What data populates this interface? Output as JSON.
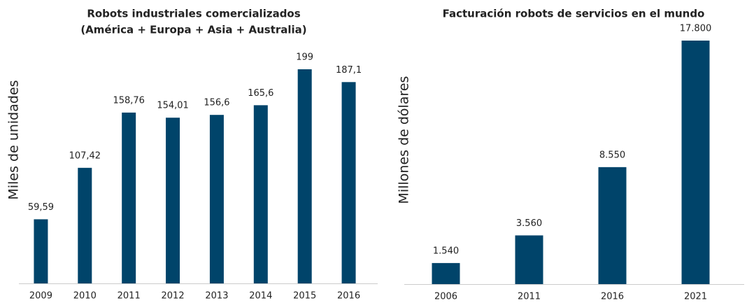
{
  "chart_data": [
    {
      "type": "bar",
      "title": [
        "Robots industriales comercializados",
        "(América + Europa + Asia + Australia)"
      ],
      "y_label": "Miles de unidades",
      "categories": [
        "2009",
        "2010",
        "2011",
        "2012",
        "2013",
        "2014",
        "2015",
        "2016"
      ],
      "values": [
        59.59,
        107.42,
        158.76,
        154.01,
        156.6,
        165.6,
        199,
        187.1
      ],
      "value_labels": [
        "59,59",
        "107,42",
        "158,76",
        "154,01",
        "156,6",
        "165,6",
        "199",
        "187,1"
      ],
      "color": "#00446a"
    },
    {
      "type": "bar",
      "title": [
        "Facturación robots de servicios en el mundo"
      ],
      "y_label": "Millones de dólares",
      "categories": [
        "2006",
        "2011",
        "2016",
        "2021"
      ],
      "values": [
        1540,
        3560,
        8550,
        17800
      ],
      "value_labels": [
        "1.540",
        "3.560",
        "8.550",
        "17.800"
      ],
      "color": "#00446a"
    }
  ]
}
